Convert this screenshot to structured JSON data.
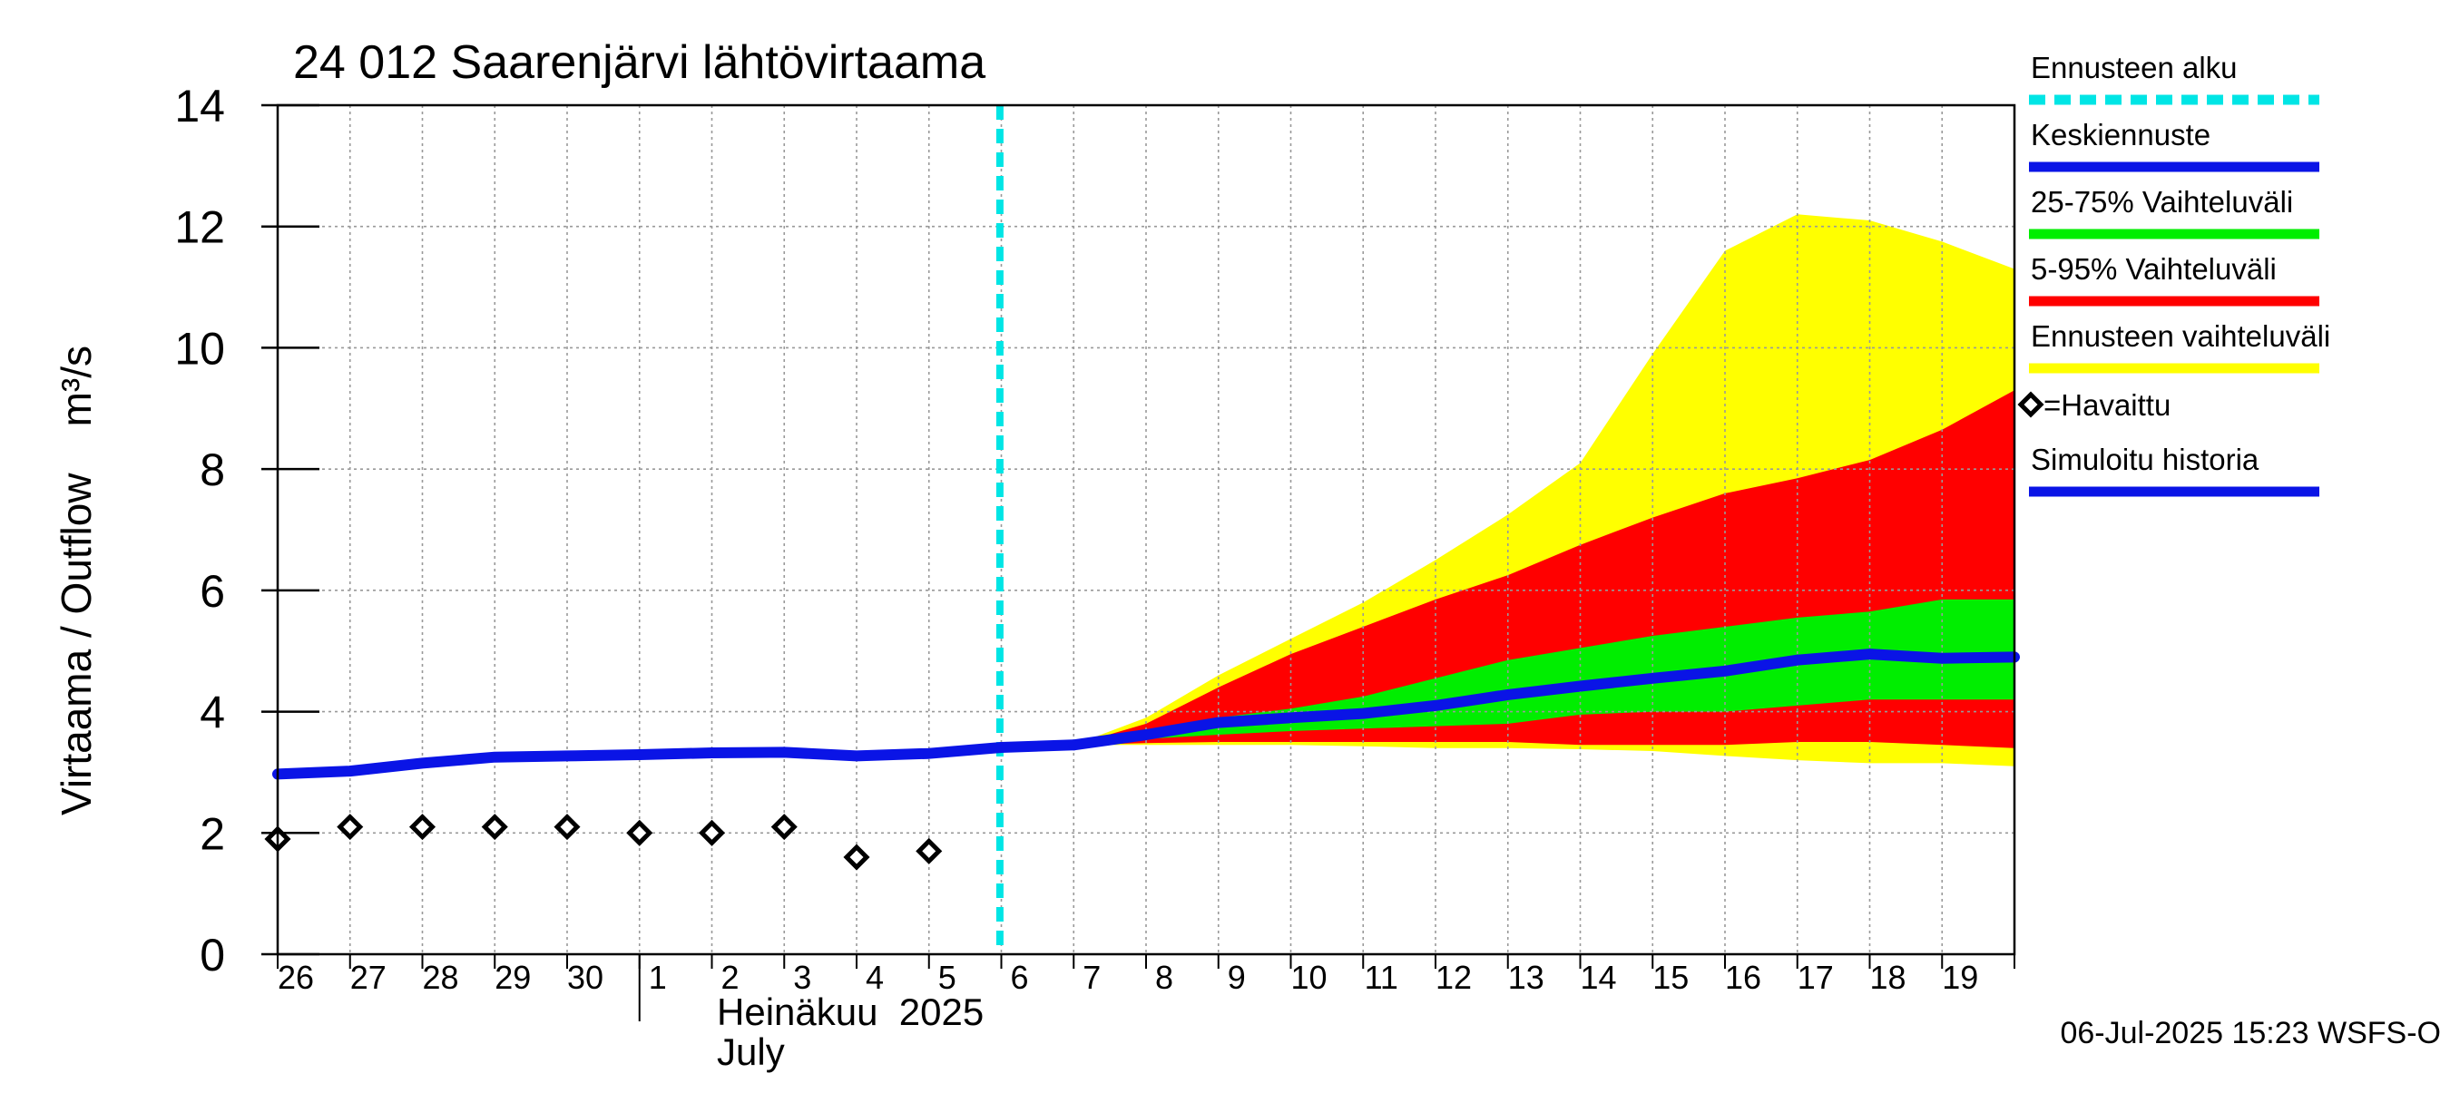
{
  "chart_data": {
    "type": "area",
    "title": "24 012 Saarenjärvi lähtövirtaama",
    "ylabel": "Virtaama / Outflow    m³/s",
    "ylim": [
      0,
      14
    ],
    "yticks": [
      0,
      2,
      4,
      6,
      8,
      10,
      12,
      14
    ],
    "x_start_day": 26,
    "x_end_day": 50,
    "day_labels": [
      {
        "day": 26,
        "label": "26"
      },
      {
        "day": 27,
        "label": "27"
      },
      {
        "day": 28,
        "label": "28"
      },
      {
        "day": 29,
        "label": "29"
      },
      {
        "day": 30,
        "label": "30"
      },
      {
        "day": 31,
        "label": "1"
      },
      {
        "day": 32,
        "label": "2"
      },
      {
        "day": 33,
        "label": "3"
      },
      {
        "day": 34,
        "label": "4"
      },
      {
        "day": 35,
        "label": "5"
      },
      {
        "day": 36,
        "label": "6"
      },
      {
        "day": 37,
        "label": "7"
      },
      {
        "day": 38,
        "label": "8"
      },
      {
        "day": 39,
        "label": "9"
      },
      {
        "day": 40,
        "label": "10"
      },
      {
        "day": 41,
        "label": "11"
      },
      {
        "day": 42,
        "label": "12"
      },
      {
        "day": 43,
        "label": "13"
      },
      {
        "day": 44,
        "label": "14"
      },
      {
        "day": 45,
        "label": "15"
      },
      {
        "day": 46,
        "label": "16"
      },
      {
        "day": 47,
        "label": "17"
      },
      {
        "day": 48,
        "label": "18"
      },
      {
        "day": 49,
        "label": "19"
      }
    ],
    "month_label_fi": "Heinäkuu  2025",
    "month_label_en": "July",
    "forecast_start_day": 35.98,
    "simulated_history": {
      "x": [
        26,
        27,
        28,
        29,
        30,
        31,
        32,
        33,
        34,
        35,
        36,
        37
      ],
      "y": [
        2.97,
        3.02,
        3.15,
        3.25,
        3.27,
        3.29,
        3.32,
        3.33,
        3.27,
        3.31,
        3.41,
        3.45
      ]
    },
    "observed": {
      "x": [
        26,
        27,
        28,
        29,
        30,
        31,
        32,
        33,
        34,
        35
      ],
      "y": [
        1.9,
        2.1,
        2.1,
        2.1,
        2.1,
        2.0,
        2.0,
        2.1,
        1.6,
        1.7
      ]
    },
    "forecast_x": [
      37,
      38,
      39,
      40,
      41,
      42,
      43,
      44,
      45,
      46,
      47,
      48,
      49,
      50
    ],
    "ensemble_range": {
      "low": [
        3.45,
        3.45,
        3.45,
        3.45,
        3.43,
        3.4,
        3.4,
        3.38,
        3.35,
        3.27,
        3.2,
        3.15,
        3.15,
        3.1
      ],
      "high": [
        3.45,
        3.9,
        4.6,
        5.2,
        5.8,
        6.5,
        7.25,
        8.1,
        9.9,
        11.6,
        12.2,
        12.1,
        11.75,
        11.3
      ]
    },
    "p5_95": {
      "low": [
        3.45,
        3.48,
        3.5,
        3.5,
        3.5,
        3.5,
        3.5,
        3.45,
        3.45,
        3.45,
        3.5,
        3.5,
        3.45,
        3.4
      ],
      "high": [
        3.45,
        3.8,
        4.4,
        4.95,
        5.4,
        5.85,
        6.25,
        6.75,
        7.2,
        7.6,
        7.85,
        8.15,
        8.65,
        9.3
      ]
    },
    "p25_75": {
      "low": [
        3.45,
        3.55,
        3.62,
        3.68,
        3.72,
        3.76,
        3.8,
        3.95,
        4.0,
        4.0,
        4.1,
        4.2,
        4.2,
        4.2
      ],
      "high": [
        3.45,
        3.65,
        3.9,
        4.05,
        4.25,
        4.55,
        4.85,
        5.05,
        5.25,
        5.4,
        5.55,
        5.65,
        5.85,
        5.85
      ]
    },
    "median": {
      "y": [
        3.45,
        3.62,
        3.82,
        3.9,
        3.97,
        4.1,
        4.28,
        4.42,
        4.55,
        4.67,
        4.85,
        4.95,
        4.88,
        4.9
      ]
    },
    "legend": [
      {
        "label": "Ennusteen alku",
        "color": "#00e5e5",
        "style": "dashed"
      },
      {
        "label": "Keskiennuste",
        "color": "#0a14e6",
        "style": "line"
      },
      {
        "label": "25-75% Vaihteluväli",
        "color": "#00ee00",
        "style": "line"
      },
      {
        "label": "5-95% Vaihteluväli",
        "color": "#ff0000",
        "style": "line"
      },
      {
        "label": "Ennusteen vaihteluväli",
        "color": "#ffff00",
        "style": "line"
      },
      {
        "label": "=Havaittu",
        "color": "#000000",
        "style": "marker"
      },
      {
        "label": "Simuloitu historia",
        "color": "#0a14e6",
        "style": "line"
      }
    ],
    "colors": {
      "ensemble": "#ffff00",
      "p5_95": "#ff0000",
      "p25_75": "#00ee00",
      "median": "#0a14e6",
      "history": "#0a14e6",
      "forecast_start": "#00e5e5",
      "grid": "#999999"
    },
    "timestamp": "06-Jul-2025 15:23 WSFS-O"
  }
}
